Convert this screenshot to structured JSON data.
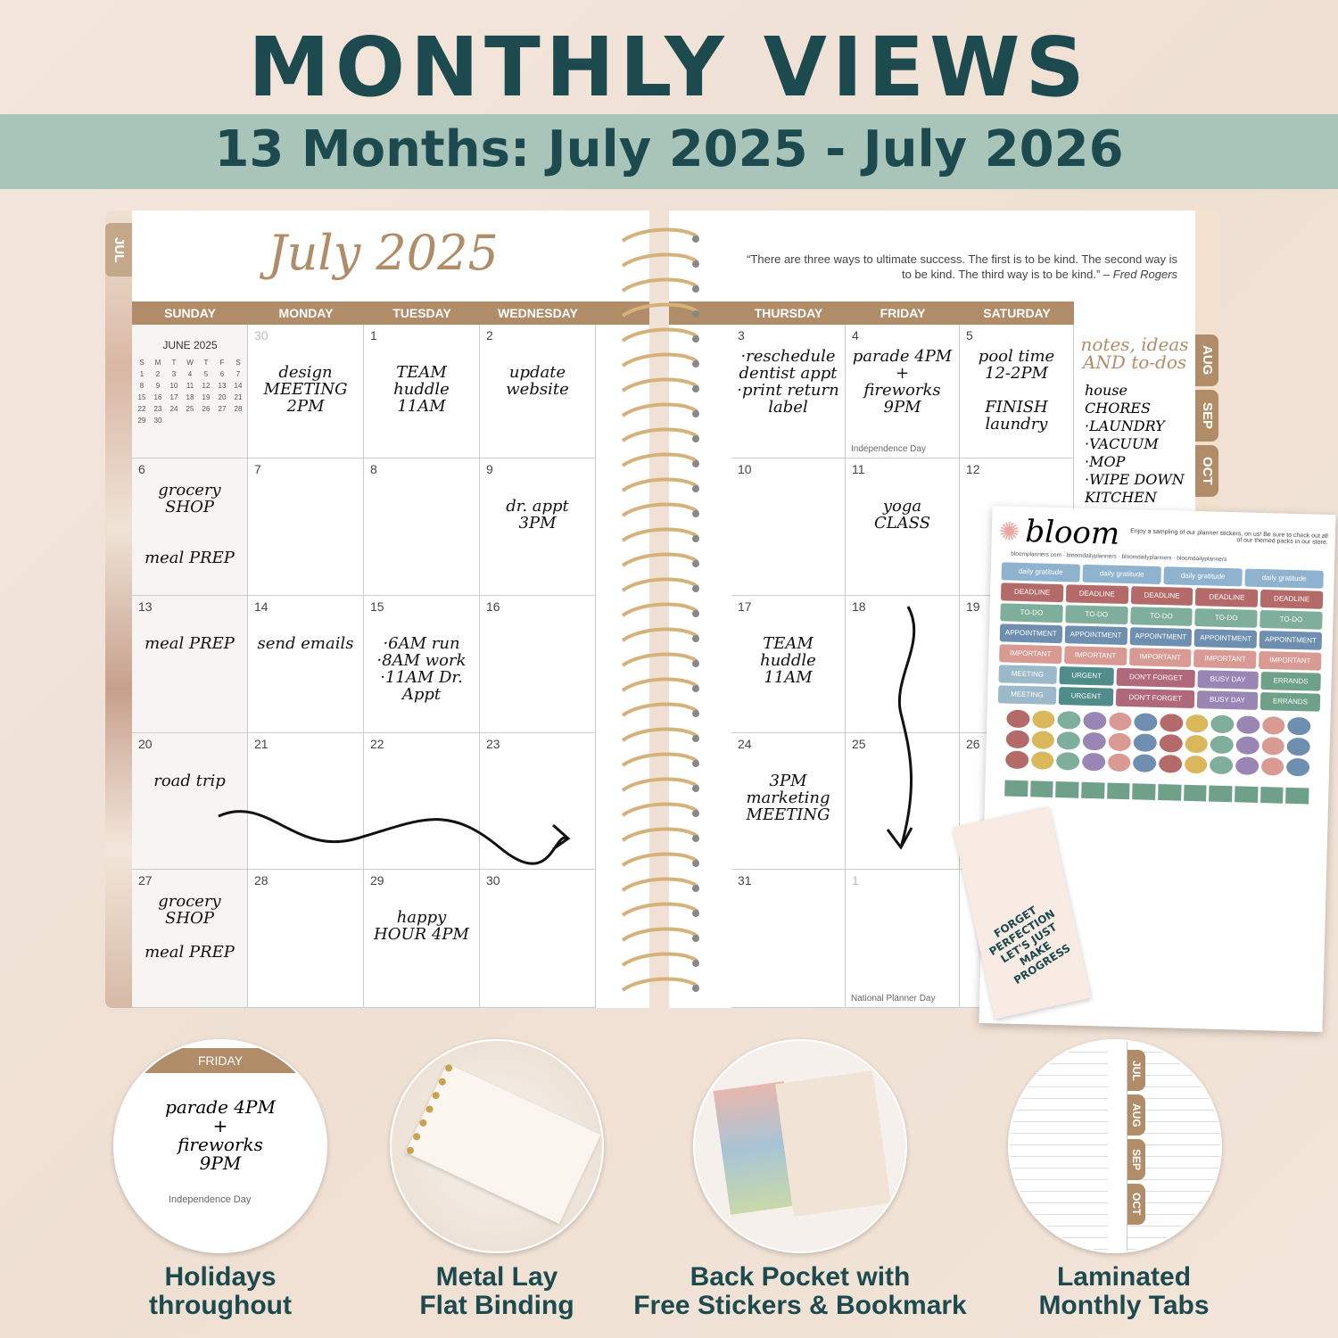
{
  "header": {
    "title": "MONTHLY VIEWS",
    "subtitle": "13 Months: July 2025 - July 2026"
  },
  "planner": {
    "month_title": "July 2025",
    "tab_left": "JUL",
    "quote": "“There are three ways to ultimate success. The first is to be kind. The second way is to be kind. The third way is to be kind.”",
    "quote_author": "– Fred Rogers",
    "days_left": [
      "SUNDAY",
      "MONDAY",
      "TUESDAY",
      "WEDNESDAY"
    ],
    "days_right": [
      "THURSDAY",
      "FRIDAY",
      "SATURDAY"
    ],
    "mini_cal": {
      "title": "JUNE 2025",
      "dow": [
        "S",
        "M",
        "T",
        "W",
        "T",
        "F",
        "S"
      ],
      "rows": [
        [
          "1",
          "2",
          "3",
          "4",
          "5",
          "6",
          "7"
        ],
        [
          "8",
          "9",
          "10",
          "11",
          "12",
          "13",
          "14"
        ],
        [
          "15",
          "16",
          "17",
          "18",
          "19",
          "20",
          "21"
        ],
        [
          "22",
          "23",
          "24",
          "25",
          "26",
          "27",
          "28"
        ],
        [
          "29",
          "30",
          "",
          "",
          "",
          "",
          ""
        ]
      ]
    },
    "left_cells": [
      [
        {
          "n": ""
        },
        {
          "n": "30",
          "dim": true,
          "note": "design\nMEETING 2PM"
        },
        {
          "n": "1",
          "note": "TEAM\nhuddle\n11AM"
        },
        {
          "n": "2",
          "note": "update\nwebsite"
        }
      ],
      [
        {
          "n": "6",
          "note": "grocery\nSHOP\n\n\nmeal PREP"
        },
        {
          "n": "7"
        },
        {
          "n": "8"
        },
        {
          "n": "9",
          "note": "dr. appt\n3PM"
        }
      ],
      [
        {
          "n": "13",
          "note": "meal PREP"
        },
        {
          "n": "14",
          "note": "send emails"
        },
        {
          "n": "15",
          "note": "·6AM run\n·8AM work\n·11AM Dr. Appt"
        },
        {
          "n": "16"
        }
      ],
      [
        {
          "n": "20",
          "note": "road trip"
        },
        {
          "n": "21"
        },
        {
          "n": "22"
        },
        {
          "n": "23"
        }
      ],
      [
        {
          "n": "27",
          "note": "grocery\nSHOP\n\nmeal PREP"
        },
        {
          "n": "28"
        },
        {
          "n": "29",
          "note": "happy\nHOUR 4PM"
        },
        {
          "n": "30"
        }
      ]
    ],
    "right_cells": [
      [
        {
          "n": "3",
          "note": "·reschedule\ndentist appt\n·print return\nlabel"
        },
        {
          "n": "4",
          "note": "parade 4PM\n+\nfireworks\n9PM",
          "holiday": "Independence Day"
        },
        {
          "n": "5",
          "note": "pool time\n12-2PM\n\nFINISH\nlaundry"
        }
      ],
      [
        {
          "n": "10"
        },
        {
          "n": "11",
          "note": "yoga\nCLASS"
        },
        {
          "n": "12"
        }
      ],
      [
        {
          "n": "17",
          "note": "TEAM\nhuddle\n11AM"
        },
        {
          "n": "18"
        },
        {
          "n": "19"
        }
      ],
      [
        {
          "n": "24",
          "note": "3PM\nmarketing\nMEETING"
        },
        {
          "n": "25"
        },
        {
          "n": "26"
        }
      ],
      [
        {
          "n": "31"
        },
        {
          "n": "1",
          "dim": true,
          "holiday": "National Planner Day"
        },
        {
          "n": ""
        }
      ]
    ],
    "notes_header": "notes, ideas AND to-dos",
    "notes_text": "house CHORES\n·LAUNDRY\n·VACUUM\n·MOP\n·WIPE DOWN\nKITCHEN",
    "side_tabs": [
      "AUG",
      "SEP",
      "OCT"
    ]
  },
  "sticker_sheet": {
    "brand": "bloom",
    "blurb": "Enjoy a sampling of our planner stickers, on us! Be sure to check out all of our themed packs in our store.",
    "social": "bloomplanners.com · bloomdailyplanners · bloomdailyplanners · bloomdailyplanners",
    "rows": [
      {
        "label": "daily gratitude",
        "color": "#8fb3cf",
        "count": 4
      },
      {
        "label": "DEADLINE",
        "color": "#b56a6a",
        "count": 5
      },
      {
        "label": "TO-DO",
        "color": "#7fae9c",
        "count": 5
      },
      {
        "label": "APPOINTMENT",
        "color": "#6f8fb0",
        "count": 5
      },
      {
        "label": "IMPORTANT",
        "color": "#d99a93",
        "count": 5
      },
      {
        "labels": [
          "MEETING",
          "URGENT",
          "DON'T FORGET",
          "BUSY DAY",
          "ERRANDS"
        ],
        "colors": [
          "#9bb9c9",
          "#4f8c8a",
          "#b0697a",
          "#9a86b5",
          "#6ea08a"
        ]
      },
      {
        "labels": [
          "MEETING",
          "URGENT",
          "DON'T FORGET",
          "BUSY DAY",
          "ERRANDS"
        ],
        "colors": [
          "#9bb9c9",
          "#4f8c8a",
          "#b0697a",
          "#9a86b5",
          "#6ea08a"
        ]
      }
    ],
    "bookmark_text": "FORGET PERFECTION LET'S JUST MAKE PROGRESS"
  },
  "features": [
    {
      "caption": "Holidays\nthroughout",
      "detail_day": "FRIDAY",
      "detail_note": "parade 4PM\n+\nfireworks\n9PM",
      "detail_holiday": "Independence Day"
    },
    {
      "caption": "Metal Lay\nFlat Binding"
    },
    {
      "caption": "Back Pocket with\nFree Stickers & Bookmark"
    },
    {
      "caption": "Laminated\nMonthly Tabs",
      "tabs": [
        "JUL",
        "AUG",
        "SEP",
        "OCT"
      ]
    }
  ],
  "colors": {
    "teal": "#1d4a4f",
    "band": "#a9c4b9",
    "tan": "#b08d68"
  }
}
